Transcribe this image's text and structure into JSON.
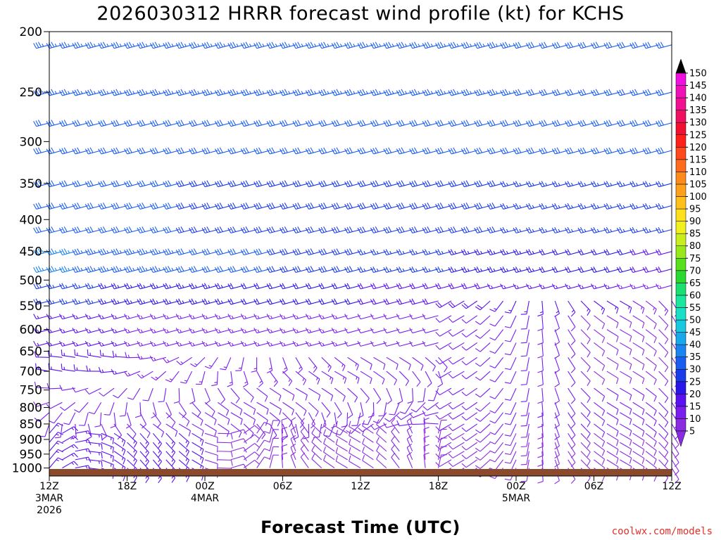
{
  "chart_data": {
    "type": "wind-barb time-height",
    "title": "2026030312 HRRR forecast wind profile (kt) for KCHS",
    "xlabel": "Forecast Time (UTC)",
    "credit": "coolwx.com/models",
    "y_ticks": [
      200,
      250,
      300,
      350,
      400,
      450,
      500,
      550,
      600,
      650,
      700,
      750,
      800,
      850,
      900,
      950,
      1000
    ],
    "y_range_hpa": [
      200,
      1030
    ],
    "y_scale": "log-pressure",
    "x_range_hours": [
      0,
      48
    ],
    "x_ticks": [
      {
        "hour": 0,
        "lines": [
          "12Z",
          "3MAR",
          "2026"
        ]
      },
      {
        "hour": 6,
        "lines": [
          "18Z"
        ]
      },
      {
        "hour": 12,
        "lines": [
          "00Z",
          "4MAR"
        ]
      },
      {
        "hour": 18,
        "lines": [
          "06Z"
        ]
      },
      {
        "hour": 24,
        "lines": [
          "12Z"
        ]
      },
      {
        "hour": 30,
        "lines": [
          "18Z"
        ]
      },
      {
        "hour": 36,
        "lines": [
          "00Z",
          "5MAR"
        ]
      },
      {
        "hour": 42,
        "lines": [
          "06Z"
        ]
      },
      {
        "hour": 48,
        "lines": [
          "12Z"
        ]
      }
    ],
    "barb_levels_hpa": [
      210,
      250,
      280,
      310,
      350,
      380,
      415,
      450,
      480,
      510,
      540,
      570,
      600,
      630,
      665,
      700,
      745,
      785,
      815,
      850,
      880,
      910,
      940,
      970,
      1000
    ],
    "barb_time_step_hours": 1,
    "colorbar": {
      "levels": [
        5,
        10,
        15,
        20,
        25,
        30,
        35,
        40,
        45,
        50,
        55,
        60,
        65,
        70,
        75,
        80,
        85,
        90,
        95,
        100,
        105,
        110,
        115,
        120,
        125,
        130,
        135,
        140,
        145,
        150
      ],
      "colors": [
        "#8a2be2",
        "#7a1ef0",
        "#5a10f0",
        "#2a16e8",
        "#1a3ce8",
        "#1a5ef0",
        "#1a84f0",
        "#1aa8ec",
        "#1ac8e0",
        "#1ae0c8",
        "#1ae8a0",
        "#1ae070",
        "#2ad830",
        "#58e01c",
        "#98e81c",
        "#c8ee1c",
        "#f0f01c",
        "#ffe01c",
        "#ffc01c",
        "#ffa01c",
        "#ff8a1c",
        "#ff6a1c",
        "#ff481c",
        "#ff201c",
        "#f01030",
        "#f01060",
        "#f01090",
        "#f010b8",
        "#f010e0",
        "#e010f0"
      ],
      "labels": [
        "5",
        "10",
        "15",
        "20",
        "25",
        "30",
        "35",
        "40",
        "45",
        "50",
        "55",
        "60",
        "65",
        "70",
        "75",
        "80",
        "85",
        "90",
        "95",
        "100",
        "105",
        "110",
        "115",
        "120",
        "125",
        "130",
        "135",
        "140",
        "145",
        "150"
      ]
    }
  }
}
